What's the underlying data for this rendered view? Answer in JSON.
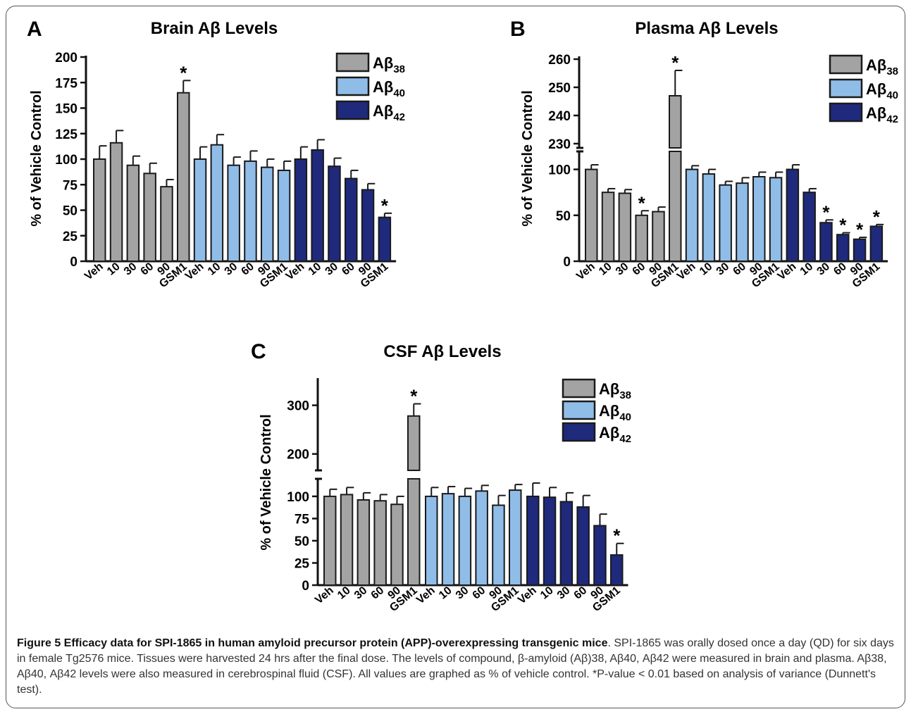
{
  "colors": {
    "ab38": "#a3a3a3",
    "ab40": "#90bde8",
    "ab42": "#1f2a7c",
    "axis": "#111111"
  },
  "chart_data": [
    {
      "panel": "A",
      "type": "bar",
      "title": "Brain Aβ Levels",
      "ylabel": "% of Vehicle Control",
      "ylim": [
        0,
        200
      ],
      "yticks": [
        "0",
        "25",
        "50",
        "75",
        "100",
        "125",
        "150",
        "175",
        "200"
      ],
      "categories": [
        "Veh",
        "10",
        "30",
        "60",
        "90",
        "GSM1"
      ],
      "legend": {
        "position": "top-right",
        "entries": [
          {
            "base": "Aβ",
            "sub": "38"
          },
          {
            "base": "Aβ",
            "sub": "40"
          },
          {
            "base": "Aβ",
            "sub": "42"
          }
        ]
      },
      "series": [
        {
          "name": "Aβ38",
          "values": [
            100,
            116,
            94,
            86,
            73,
            165
          ],
          "errors": [
            13,
            12,
            9,
            10,
            7,
            12
          ],
          "significant": [
            false,
            false,
            false,
            false,
            false,
            true
          ]
        },
        {
          "name": "Aβ40",
          "values": [
            100,
            114,
            94,
            98,
            92,
            89
          ],
          "errors": [
            12,
            10,
            8,
            10,
            8,
            9
          ],
          "significant": [
            false,
            false,
            false,
            false,
            false,
            false
          ]
        },
        {
          "name": "Aβ42",
          "values": [
            100,
            109,
            93,
            81,
            70,
            43
          ],
          "errors": [
            12,
            10,
            8,
            8,
            6,
            4
          ],
          "significant": [
            false,
            false,
            false,
            false,
            false,
            true
          ]
        }
      ]
    },
    {
      "panel": "B",
      "type": "bar",
      "title": "Plasma Aβ Levels",
      "ylabel": "% of Vehicle Control",
      "ylim": [
        0,
        260
      ],
      "axis_break": [
        115,
        230
      ],
      "yticks": [
        "0",
        "50",
        "100",
        "230",
        "240",
        "250",
        "260"
      ],
      "categories": [
        "Veh",
        "10",
        "30",
        "60",
        "90",
        "GSM1"
      ],
      "legend": {
        "position": "top-right",
        "entries": [
          {
            "base": "Aβ",
            "sub": "38"
          },
          {
            "base": "Aβ",
            "sub": "40"
          },
          {
            "base": "Aβ",
            "sub": "42"
          }
        ]
      },
      "series": [
        {
          "name": "Aβ38",
          "values": [
            100,
            75,
            74,
            50,
            54,
            247
          ],
          "errors": [
            5,
            4,
            4,
            5,
            5,
            9
          ],
          "significant": [
            false,
            false,
            false,
            true,
            false,
            true
          ]
        },
        {
          "name": "Aβ40",
          "values": [
            100,
            95,
            83,
            85,
            92,
            91
          ],
          "errors": [
            4,
            5,
            4,
            6,
            5,
            6
          ],
          "significant": [
            false,
            false,
            false,
            false,
            false,
            false
          ]
        },
        {
          "name": "Aβ42",
          "values": [
            100,
            75,
            42,
            29,
            24,
            38
          ],
          "errors": [
            5,
            4,
            3,
            2,
            2,
            2
          ],
          "significant": [
            false,
            false,
            true,
            true,
            true,
            true
          ]
        }
      ]
    },
    {
      "panel": "C",
      "type": "bar",
      "title": "CSF Aβ Levels",
      "ylabel": "% of Vehicle Control",
      "ylim": [
        0,
        350
      ],
      "axis_break": [
        115,
        175
      ],
      "yticks": [
        "0",
        "25",
        "50",
        "75",
        "100",
        "200",
        "300"
      ],
      "categories": [
        "Veh",
        "10",
        "30",
        "60",
        "90",
        "GSM1"
      ],
      "legend": {
        "position": "top-right",
        "entries": [
          {
            "base": "Aβ",
            "sub": "38"
          },
          {
            "base": "Aβ",
            "sub": "40"
          },
          {
            "base": "Aβ",
            "sub": "42"
          }
        ]
      },
      "series": [
        {
          "name": "Aβ38",
          "values": [
            100,
            102,
            96,
            95,
            91,
            278
          ],
          "errors": [
            8,
            8,
            8,
            7,
            9,
            25
          ],
          "significant": [
            false,
            false,
            false,
            false,
            false,
            true
          ]
        },
        {
          "name": "Aβ40",
          "values": [
            100,
            103,
            100,
            106,
            90,
            107
          ],
          "errors": [
            10,
            8,
            9,
            10,
            11,
            9
          ],
          "significant": [
            false,
            false,
            false,
            false,
            false,
            false
          ]
        },
        {
          "name": "Aβ42",
          "values": [
            100,
            99,
            94,
            88,
            67,
            34
          ],
          "errors": [
            15,
            11,
            10,
            13,
            13,
            13
          ],
          "significant": [
            false,
            false,
            false,
            false,
            false,
            true
          ]
        }
      ]
    }
  ],
  "caption": {
    "label": "Figure 5 Efficacy data for SPI-1865 in human amyloid precursor protein (APP)-overexpressing transgenic mice",
    "text": ". SPI-1865 was orally dosed once a day (QD) for six days in female Tg2576 mice. Tissues were harvested 24 hrs after the final dose. The levels of compound, β-amyloid (Aβ)38, Aβ40, Aβ42 were measured in brain and plasma. Aβ38, Aβ40, Aβ42 levels were also measured in cerebrospinal fluid (CSF). All values are graphed as % of vehicle control. *P-value < 0.01 based on analysis of variance (Dunnett's test)."
  }
}
